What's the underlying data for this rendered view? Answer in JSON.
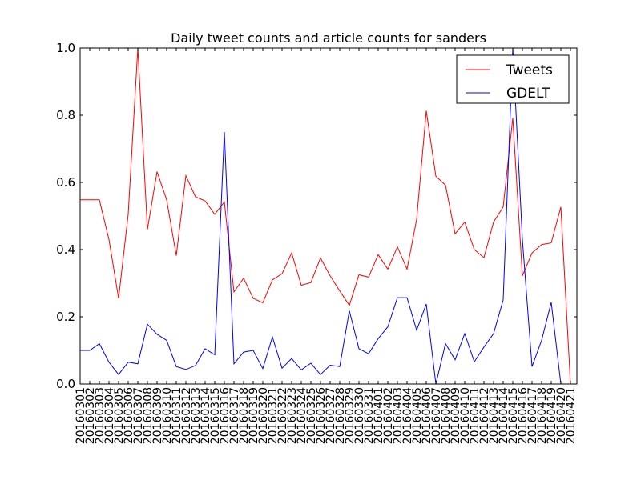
{
  "chart_data": {
    "type": "line",
    "title": "Daily tweet counts and article counts for sanders",
    "xlabel": "",
    "ylabel": "",
    "ylim": [
      0,
      1.0
    ],
    "yticks": [
      "0.0",
      "0.2",
      "0.4",
      "0.6",
      "0.8",
      "1.0"
    ],
    "legend_position": "top-right",
    "grid": false,
    "x": [
      "20160301",
      "20160302",
      "20160303",
      "20160304",
      "20160305",
      "20160306",
      "20160307",
      "20160308",
      "20160309",
      "20160310",
      "20160311",
      "20160312",
      "20160313",
      "20160314",
      "20160315",
      "20160316",
      "20160317",
      "20160318",
      "20160319",
      "20160320",
      "20160321",
      "20160322",
      "20160323",
      "20160324",
      "20160325",
      "20160326",
      "20160327",
      "20160328",
      "20160329",
      "20160330",
      "20160331",
      "20160401",
      "20160402",
      "20160403",
      "20160404",
      "20160405",
      "20160406",
      "20160407",
      "20160408",
      "20160409",
      "20160410",
      "20160411",
      "20160412",
      "20160413",
      "20160414",
      "20160415",
      "20160416",
      "20160417",
      "20160418",
      "20160419",
      "20160420",
      "20160421"
    ],
    "series": [
      {
        "name": "Tweets",
        "color": "#ff0000",
        "values": [
          0.548,
          0.548,
          0.548,
          0.43,
          0.255,
          0.505,
          1.0,
          0.46,
          0.632,
          0.548,
          0.382,
          0.62,
          0.557,
          0.545,
          0.505,
          0.542,
          0.274,
          0.315,
          0.255,
          0.242,
          0.31,
          0.328,
          0.39,
          0.294,
          0.302,
          0.375,
          0.322,
          0.277,
          0.234,
          0.325,
          0.318,
          0.385,
          0.342,
          0.408,
          0.342,
          0.49,
          0.813,
          0.618,
          0.592,
          0.447,
          0.482,
          0.4,
          0.376,
          0.482,
          0.527,
          0.792,
          0.322,
          0.39,
          0.415,
          0.42,
          0.527,
          0.0
        ]
      },
      {
        "name": "GDELT",
        "color": "#0000ff",
        "values": [
          0.1,
          0.1,
          0.12,
          0.065,
          0.028,
          0.065,
          0.06,
          0.178,
          0.148,
          0.13,
          0.052,
          0.043,
          0.055,
          0.105,
          0.087,
          0.75,
          0.06,
          0.095,
          0.1,
          0.046,
          0.14,
          0.047,
          0.076,
          0.042,
          0.062,
          0.028,
          0.056,
          0.052,
          0.218,
          0.105,
          0.09,
          0.135,
          0.17,
          0.257,
          0.257,
          0.16,
          0.238,
          0.0,
          0.12,
          0.072,
          0.15,
          0.066,
          0.11,
          0.15,
          0.25,
          1.0,
          0.43,
          0.052,
          0.13,
          0.243,
          0.0,
          0.0
        ]
      }
    ]
  }
}
